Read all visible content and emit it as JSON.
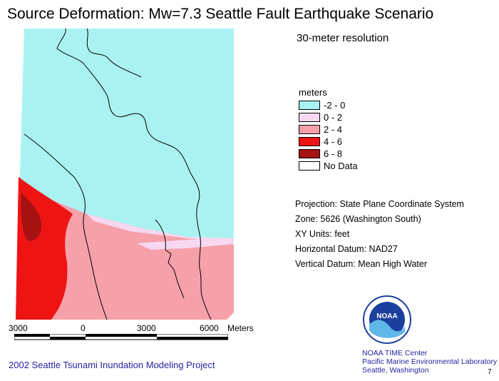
{
  "title": "Source Deformation: Mw=7.3 Seattle Fault Earthquake Scenario",
  "resolution": "30-meter resolution",
  "legend": {
    "title": "meters",
    "items": [
      {
        "label": "-2 - 0",
        "color": "#aaf2f2"
      },
      {
        "label": "0 - 2",
        "color": "#f6d8f0"
      },
      {
        "label": "2 - 4",
        "color": "#f6a0aa"
      },
      {
        "label": "4 - 6",
        "color": "#ee1414"
      },
      {
        "label": "6 - 8",
        "color": "#a51212"
      },
      {
        "label": "No Data",
        "color": "#ffffff"
      }
    ]
  },
  "projection": {
    "projection": "Projection: State Plane Coordinate System",
    "zone": "Zone: 5626 (Washington South)",
    "xy_units": "XY Units: feet",
    "horizontal_datum": "Horizontal Datum: NAD27",
    "vertical_datum": "Vertical Datum: Mean High Water"
  },
  "scale": {
    "labels": [
      "3000",
      "0",
      "3000",
      "6000"
    ],
    "unit": "Meters"
  },
  "project": "2002 Seattle Tsunami Inundation Modeling Project",
  "noaa": {
    "logo_text": "NOAA",
    "line1": "NOAA TIME Center",
    "line2": "Pacific Marine Environmental Laboratory",
    "line3": "Seattle, Washington"
  },
  "page_number": "7"
}
